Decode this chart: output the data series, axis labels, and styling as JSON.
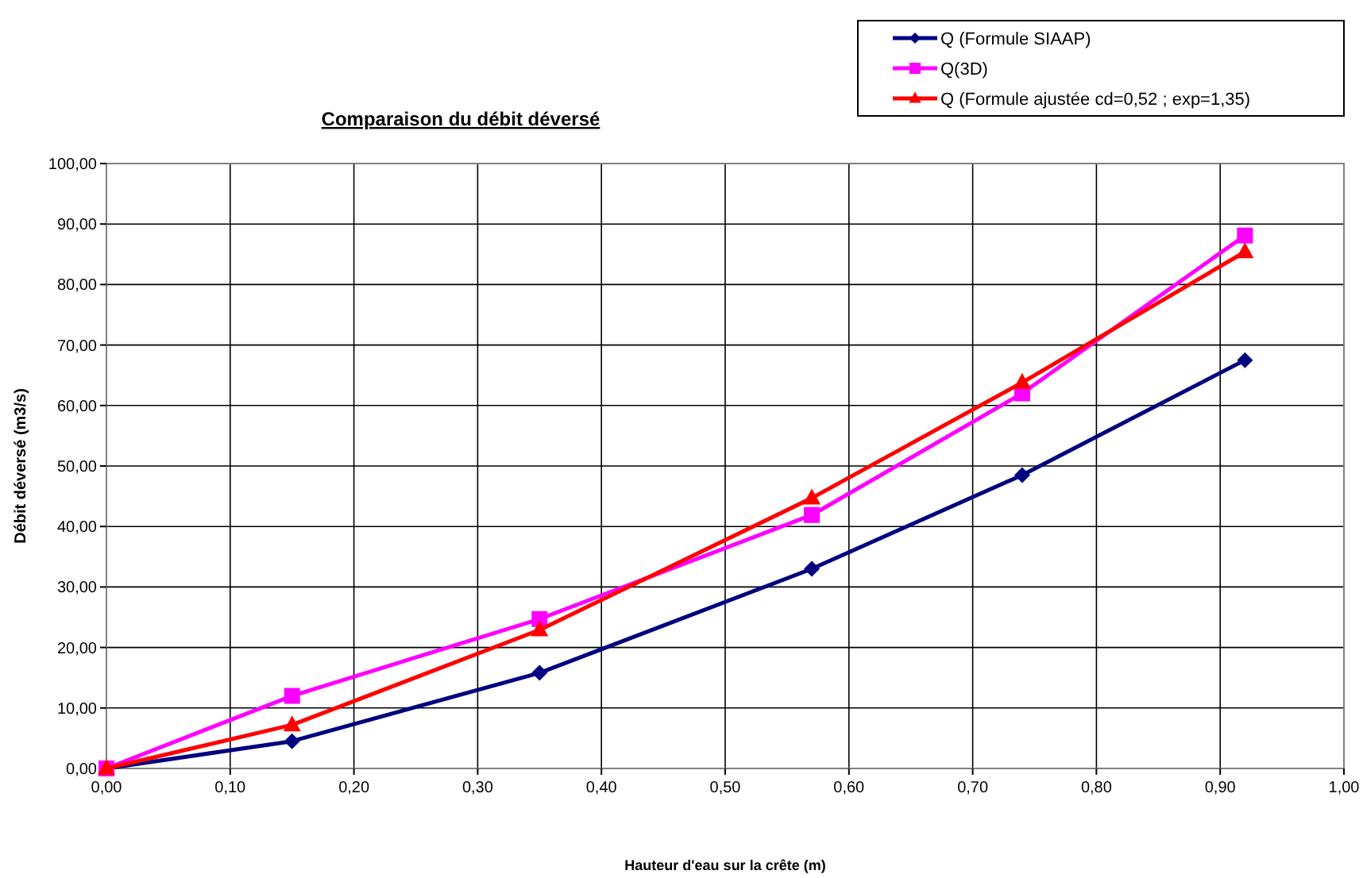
{
  "chart_data": {
    "type": "line",
    "title": "Comparaison du débit déversé",
    "xlabel": "Hauteur d'eau sur la crête (m)",
    "ylabel": "Débit déversé (m3/s)",
    "x": [
      0,
      0.15,
      0.35,
      0.57,
      0.74,
      0.92
    ],
    "series": [
      {
        "name": "Q (Formule SIAAP)",
        "color": "#000080",
        "marker": "diamond",
        "values": [
          0,
          4.5,
          15.8,
          33.0,
          48.5,
          67.5
        ]
      },
      {
        "name": "Q(3D)",
        "color": "#ff00ff",
        "marker": "square",
        "values": [
          0,
          12.0,
          24.7,
          41.9,
          62.0,
          88.1
        ]
      },
      {
        "name": "Q (Formule ajustée cd=0,52 ; exp=1,35)",
        "color": "#ff0000",
        "marker": "triangle",
        "values": [
          0,
          7.2,
          22.9,
          44.7,
          63.8,
          85.4
        ]
      }
    ],
    "xlim": [
      0,
      1
    ],
    "ylim": [
      0,
      100
    ],
    "xticks": [
      {
        "value": 0,
        "label": "0,00"
      },
      {
        "value": 0.1,
        "label": "0,10"
      },
      {
        "value": 0.2,
        "label": "0,20"
      },
      {
        "value": 0.3,
        "label": "0,30"
      },
      {
        "value": 0.4,
        "label": "0,40"
      },
      {
        "value": 0.5,
        "label": "0,50"
      },
      {
        "value": 0.6,
        "label": "0,60"
      },
      {
        "value": 0.7,
        "label": "0,70"
      },
      {
        "value": 0.8,
        "label": "0,80"
      },
      {
        "value": 0.9,
        "label": "0,90"
      },
      {
        "value": 1,
        "label": "1,00"
      }
    ],
    "yticks": [
      {
        "value": 0,
        "label": "0,00"
      },
      {
        "value": 10,
        "label": "10,00"
      },
      {
        "value": 20,
        "label": "20,00"
      },
      {
        "value": 30,
        "label": "30,00"
      },
      {
        "value": 40,
        "label": "40,00"
      },
      {
        "value": 50,
        "label": "50,00"
      },
      {
        "value": 60,
        "label": "60,00"
      },
      {
        "value": 70,
        "label": "70,00"
      },
      {
        "value": 80,
        "label": "80,00"
      },
      {
        "value": 90,
        "label": "90,00"
      },
      {
        "value": 100,
        "label": "100,00"
      }
    ],
    "grid": true,
    "legend": "top right",
    "line_style": "solid"
  }
}
